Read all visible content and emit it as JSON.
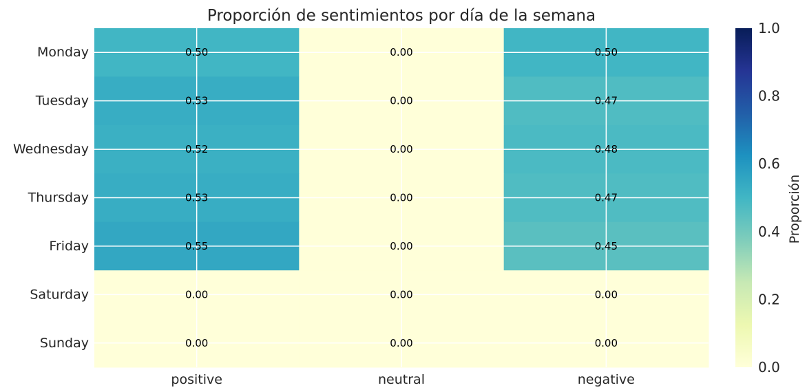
{
  "chart_data": {
    "type": "heatmap",
    "title": "Proporción de sentimientos por día de la semana",
    "columns": [
      "positive",
      "neutral",
      "negative"
    ],
    "rows": [
      "Monday",
      "Tuesday",
      "Wednesday",
      "Thursday",
      "Friday",
      "Saturday",
      "Sunday"
    ],
    "values": [
      [
        0.5,
        0.0,
        0.5
      ],
      [
        0.53,
        0.0,
        0.47
      ],
      [
        0.52,
        0.0,
        0.48
      ],
      [
        0.53,
        0.0,
        0.47
      ],
      [
        0.55,
        0.0,
        0.45
      ],
      [
        0.0,
        0.0,
        0.0
      ],
      [
        0.0,
        0.0,
        0.0
      ]
    ],
    "value_format": "0.00",
    "colormap": "YlGnBu",
    "colorbar": {
      "label": "Proporción",
      "range": [
        0.0,
        1.0
      ],
      "ticks": [
        "0.0",
        "0.2",
        "0.4",
        "0.6",
        "0.8",
        "1.0"
      ]
    },
    "grid": true,
    "grid_color": "#ffffff"
  }
}
